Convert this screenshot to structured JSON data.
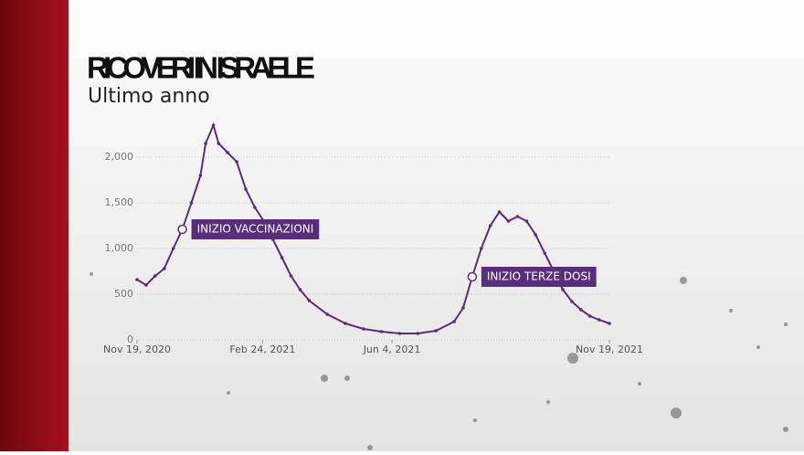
{
  "chart_data": {
    "type": "line",
    "title": "RICOVERI IN ISRAELE",
    "subtitle": "Ultimo anno",
    "x": [
      "2020-11-19",
      "2020-11-26",
      "2020-12-03",
      "2020-12-10",
      "2020-12-17",
      "2020-12-24",
      "2020-12-31",
      "2021-01-07",
      "2021-01-11",
      "2021-01-17",
      "2021-01-21",
      "2021-01-28",
      "2021-02-04",
      "2021-02-11",
      "2021-02-18",
      "2021-02-25",
      "2021-03-04",
      "2021-03-11",
      "2021-03-18",
      "2021-03-25",
      "2021-04-01",
      "2021-04-15",
      "2021-04-29",
      "2021-05-13",
      "2021-05-27",
      "2021-06-10",
      "2021-06-24",
      "2021-07-08",
      "2021-07-22",
      "2021-07-29",
      "2021-08-05",
      "2021-08-12",
      "2021-08-19",
      "2021-08-26",
      "2021-09-02",
      "2021-09-09",
      "2021-09-16",
      "2021-09-23",
      "2021-09-30",
      "2021-10-07",
      "2021-10-14",
      "2021-10-21",
      "2021-10-28",
      "2021-11-04",
      "2021-11-11",
      "2021-11-19"
    ],
    "series": [
      {
        "color": "#5a2d7a",
        "values": [
          660,
          600,
          700,
          780,
          1000,
          1210,
          1500,
          1800,
          2150,
          2350,
          2150,
          2050,
          1950,
          1650,
          1450,
          1300,
          1100,
          900,
          700,
          550,
          430,
          280,
          180,
          120,
          90,
          70,
          70,
          100,
          200,
          350,
          690,
          1000,
          1250,
          1400,
          1300,
          1350,
          1300,
          1150,
          950,
          750,
          550,
          420,
          330,
          260,
          220,
          180
        ]
      }
    ],
    "xlim": [
      "2020-11-19",
      "2021-11-19"
    ],
    "xticks": [
      {
        "value": "2020-11-19",
        "label": "Nov 19, 2020"
      },
      {
        "value": "2021-02-24",
        "label": "Feb 24, 2021"
      },
      {
        "value": "2021-06-04",
        "label": "Jun 4, 2021"
      },
      {
        "value": "2021-11-19",
        "label": "Nov 19, 2021"
      }
    ],
    "ylim": [
      0,
      2400
    ],
    "yticks": [
      0,
      500,
      {
        "value": 1000,
        "label": "1,000"
      },
      {
        "value": 1500,
        "label": "1,500"
      },
      {
        "value": 2000,
        "label": "2,000"
      }
    ],
    "grid": true,
    "annotations": [
      {
        "text": "INIZIO VACCINAZIONI",
        "x": "2020-12-24",
        "y": 1210
      },
      {
        "text": "INIZIO TERZE DOSI",
        "x": "2021-08-05",
        "y": 690
      }
    ]
  }
}
